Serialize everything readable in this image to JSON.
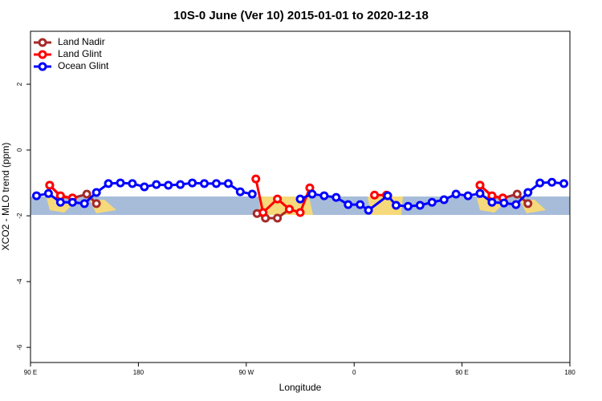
{
  "chart_data": {
    "type": "line",
    "title": "10S-0 June (Ver 10)   2015-01-01 to 2020-12-18",
    "x_label": "Longitude",
    "y_label": "XCO2 - MLO trend (ppm)",
    "xlim": [
      90,
      540
    ],
    "xticks": [
      {
        "value": 90,
        "label": "90 E"
      },
      180,
      {
        "value": 270,
        "label": "90 W"
      },
      {
        "value": 360,
        "label": "0"
      },
      {
        "value": 450,
        "label": "90 E"
      },
      {
        "value": 540,
        "label": "180"
      }
    ],
    "ylim": [
      -6.46,
      3.61
    ],
    "yticks": [
      -6,
      -4,
      -2,
      0,
      2
    ],
    "legend": "top-left",
    "series": [
      {
        "name": "Land Nadir",
        "color": "#a52a2a",
        "x": [
          106,
          115,
          125,
          137,
          145,
          210,
          279,
          286,
          296,
          306,
          400,
          465,
          475,
          484,
          496,
          505
        ],
        "values": [
          -1.07,
          -1.41,
          -1.46,
          -1.34,
          -1.63,
          null,
          -1.93,
          -2.07,
          -2.07,
          -1.8,
          null,
          -1.07,
          -1.41,
          -1.46,
          -1.34,
          -1.63
        ]
      },
      {
        "name": "Land Glint",
        "color": "#ff0000",
        "x": [
          106,
          115,
          125,
          200,
          278,
          284,
          296,
          306,
          315,
          323,
          350,
          377,
          387,
          420,
          465,
          475,
          484
        ],
        "values": [
          -1.07,
          -1.39,
          -1.46,
          null,
          -0.88,
          -1.9,
          -1.49,
          -1.8,
          -1.9,
          -1.15,
          null,
          -1.37,
          -1.37,
          null,
          -1.07,
          -1.39,
          -1.46
        ]
      },
      {
        "name": "Ocean Glint",
        "color": "#0000ff",
        "x": [
          95,
          105,
          115,
          125,
          135,
          145,
          155,
          165,
          175,
          185,
          195,
          205,
          215,
          225,
          235,
          245,
          255,
          265,
          275,
          295,
          315,
          325,
          335,
          345,
          355,
          365,
          372,
          388,
          395,
          405,
          415,
          425,
          435,
          445,
          455,
          465,
          475,
          485,
          495,
          505,
          515,
          525,
          535
        ],
        "values": [
          -1.39,
          -1.32,
          -1.59,
          -1.59,
          -1.63,
          -1.29,
          -1.02,
          -1.0,
          -1.02,
          -1.12,
          -1.05,
          -1.07,
          -1.05,
          -1.0,
          -1.02,
          -1.02,
          -1.02,
          -1.27,
          -1.34,
          null,
          -1.49,
          -1.34,
          -1.39,
          -1.44,
          -1.66,
          -1.66,
          -1.83,
          -1.39,
          -1.68,
          -1.71,
          -1.68,
          -1.59,
          -1.51,
          -1.34,
          -1.39,
          -1.32,
          -1.59,
          -1.61,
          -1.66,
          -1.29,
          -1.0,
          -0.98,
          -1.02
        ]
      }
    ]
  }
}
